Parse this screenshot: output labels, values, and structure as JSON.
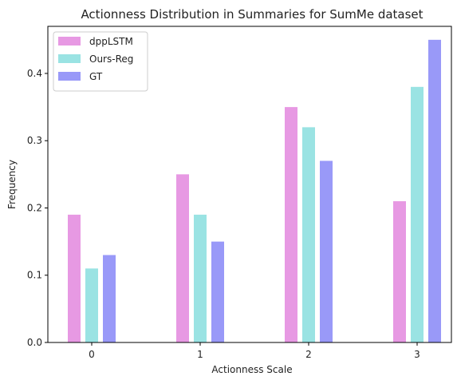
{
  "chart_data": {
    "type": "bar",
    "title": "Actionness Distribution in Summaries for SumMe dataset",
    "xlabel": "Actionness Scale",
    "ylabel": "Frequency",
    "categories": [
      "0",
      "1",
      "2",
      "3"
    ],
    "ylim": [
      0,
      0.47
    ],
    "yticks": [
      "0.0",
      "0.1",
      "0.2",
      "0.3",
      "0.4"
    ],
    "grid": false,
    "legend_position": "top-left",
    "series": [
      {
        "name": "dppLSTM",
        "color": "#e799e3",
        "values": [
          0.19,
          0.25,
          0.35,
          0.21
        ]
      },
      {
        "name": "Ours-Reg",
        "color": "#9ae3e3",
        "values": [
          0.11,
          0.19,
          0.32,
          0.38
        ]
      },
      {
        "name": "GT",
        "color": "#9999f8",
        "values": [
          0.13,
          0.15,
          0.27,
          0.45
        ]
      }
    ]
  }
}
